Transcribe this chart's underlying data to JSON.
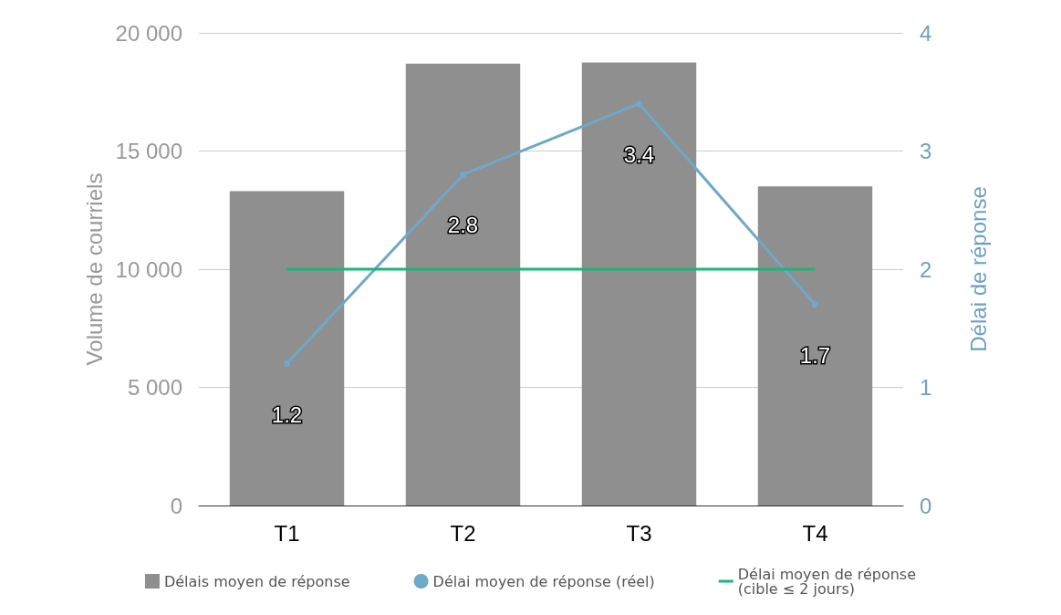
{
  "chart_data": {
    "type": "bar",
    "categories": [
      "T1",
      "T2",
      "T3",
      "T4"
    ],
    "ylabel": "Volume de courriels",
    "y2label": "Délai de réponse",
    "series": [
      {
        "name": "Délais moyen de réponse",
        "color": "#8f8f8f",
        "values": [
          13300,
          18700,
          18750,
          13500
        ]
      },
      {
        "name": "Délai moyen de réponse (réel)",
        "type": "line",
        "axis": "y2",
        "color": "#6fa8c8",
        "marker": "circle",
        "values": [
          1.2,
          2.8,
          3.4,
          1.7
        ],
        "value_labels": [
          "1.2",
          "2.8",
          "3.4",
          "1.7"
        ]
      },
      {
        "name": "Délai moyen de réponse\n(cible ≤ 2 jours)",
        "type": "line",
        "axis": "y2",
        "color": "#1db57a",
        "marker": "none",
        "values": [
          2,
          2,
          2,
          2
        ]
      }
    ],
    "ylim": [
      0,
      20000
    ],
    "yticks": [
      {
        "value": 0,
        "label": "0"
      },
      {
        "value": 5000,
        "label": "5 000"
      },
      {
        "value": 10000,
        "label": "10 000"
      },
      {
        "value": 15000,
        "label": "15 000"
      },
      {
        "value": 20000,
        "label": "20 000"
      }
    ],
    "y2lim": [
      0,
      4
    ],
    "y2ticks": [
      0,
      1,
      2,
      3,
      4
    ],
    "grid": "y",
    "legend": "bottom"
  }
}
